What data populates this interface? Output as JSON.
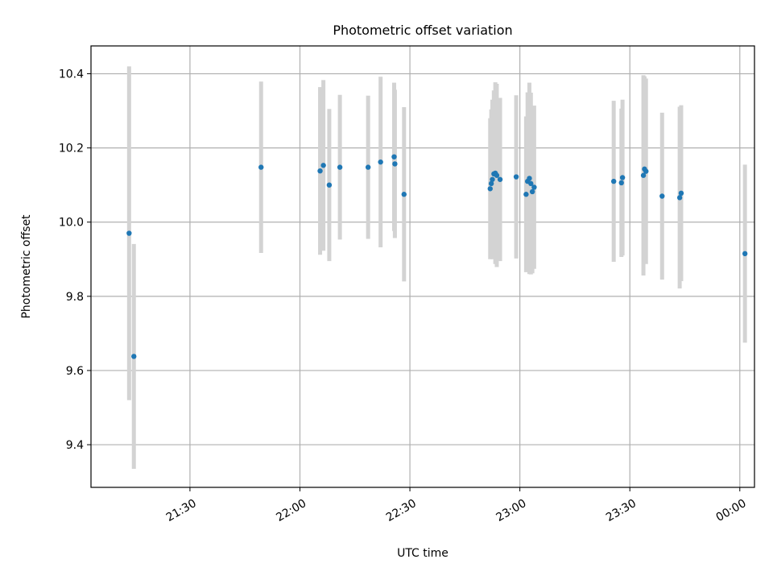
{
  "chart_data": {
    "type": "scatter",
    "title": "Photometric offset variation",
    "xlabel": "UTC time",
    "ylabel": "Photometric offset",
    "x_tick_labels": [
      "21:30",
      "22:00",
      "22:30",
      "23:00",
      "23:30",
      "00:00"
    ],
    "x_ticks_minutes": [
      90,
      120,
      150,
      180,
      210,
      240
    ],
    "y_ticks": [
      9.4,
      9.6,
      9.8,
      10.0,
      10.2,
      10.4
    ],
    "xlim_minutes": [
      63,
      244
    ],
    "ylim": [
      9.285,
      10.475
    ],
    "grid": true,
    "marker_color": "#1f77b4",
    "errorbar_color": "#d3d3d3",
    "series": [
      {
        "points": [
          {
            "t": 73.4,
            "y": 9.97,
            "err": 0.45
          },
          {
            "t": 74.7,
            "y": 9.638,
            "err": 0.303
          },
          {
            "t": 109.4,
            "y": 10.148,
            "err": 0.231
          },
          {
            "t": 125.5,
            "y": 10.138,
            "err": 0.226
          },
          {
            "t": 126.4,
            "y": 10.153,
            "err": 0.23
          },
          {
            "t": 128.0,
            "y": 10.1,
            "err": 0.205
          },
          {
            "t": 130.9,
            "y": 10.148,
            "err": 0.195
          },
          {
            "t": 138.6,
            "y": 10.148,
            "err": 0.193
          },
          {
            "t": 142.0,
            "y": 10.162,
            "err": 0.23
          },
          {
            "t": 145.7,
            "y": 10.176,
            "err": 0.2
          },
          {
            "t": 145.9,
            "y": 10.157,
            "err": 0.2
          },
          {
            "t": 148.4,
            "y": 10.075,
            "err": 0.235
          },
          {
            "t": 171.9,
            "y": 10.09,
            "err": 0.19
          },
          {
            "t": 172.2,
            "y": 10.104,
            "err": 0.2
          },
          {
            "t": 172.5,
            "y": 10.115,
            "err": 0.215
          },
          {
            "t": 172.9,
            "y": 10.13,
            "err": 0.225
          },
          {
            "t": 173.3,
            "y": 10.132,
            "err": 0.245
          },
          {
            "t": 173.7,
            "y": 10.126,
            "err": 0.247
          },
          {
            "t": 174.6,
            "y": 10.115,
            "err": 0.22
          },
          {
            "t": 179.0,
            "y": 10.122,
            "err": 0.22
          },
          {
            "t": 181.7,
            "y": 10.075,
            "err": 0.21
          },
          {
            "t": 182.1,
            "y": 10.11,
            "err": 0.24
          },
          {
            "t": 182.6,
            "y": 10.118,
            "err": 0.258
          },
          {
            "t": 183.0,
            "y": 10.104,
            "err": 0.245
          },
          {
            "t": 183.4,
            "y": 10.082,
            "err": 0.22
          },
          {
            "t": 183.9,
            "y": 10.094,
            "err": 0.22
          },
          {
            "t": 205.6,
            "y": 10.11,
            "err": 0.217
          },
          {
            "t": 207.7,
            "y": 10.106,
            "err": 0.2
          },
          {
            "t": 208.0,
            "y": 10.12,
            "err": 0.21
          },
          {
            "t": 213.7,
            "y": 10.126,
            "err": 0.27
          },
          {
            "t": 214.0,
            "y": 10.143,
            "err": 0.25
          },
          {
            "t": 214.4,
            "y": 10.137,
            "err": 0.25
          },
          {
            "t": 218.8,
            "y": 10.07,
            "err": 0.225
          },
          {
            "t": 223.6,
            "y": 10.066,
            "err": 0.245
          },
          {
            "t": 224.0,
            "y": 10.078,
            "err": 0.237
          },
          {
            "t": 241.4,
            "y": 9.915,
            "err": 0.24
          }
        ]
      }
    ]
  }
}
